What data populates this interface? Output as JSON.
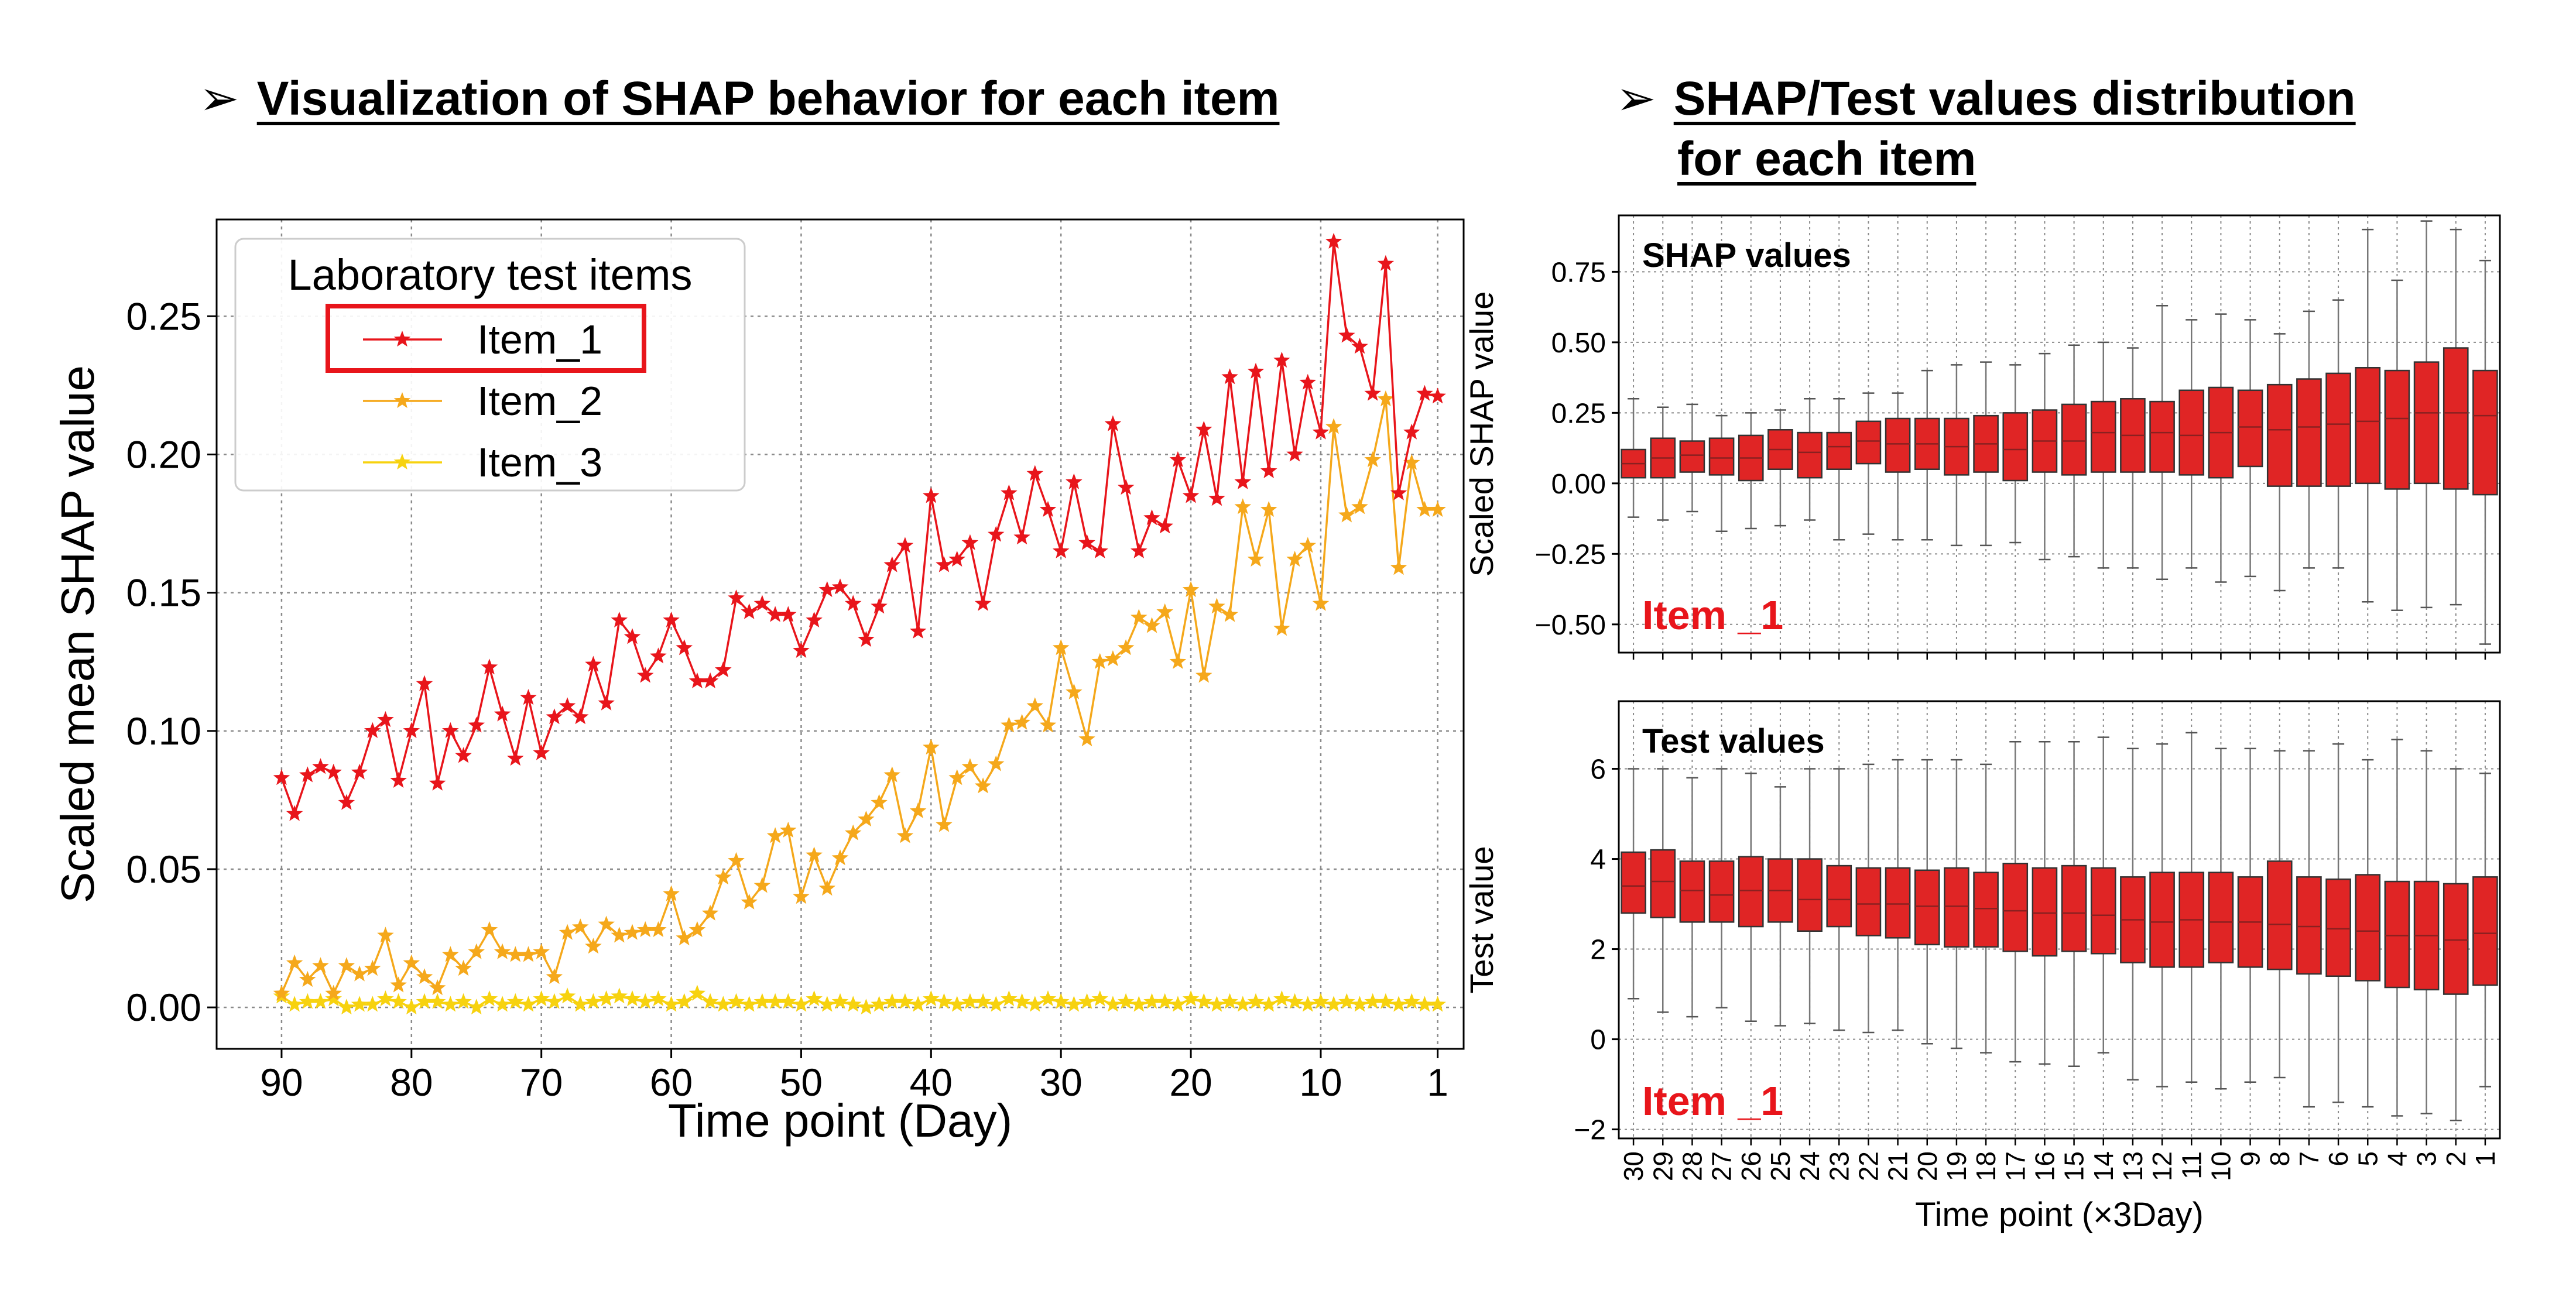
{
  "headings": {
    "left": "Visualization of SHAP behavior for each item",
    "right_line1": "SHAP/Test values distribution",
    "right_line2": "for each item"
  },
  "colors": {
    "item1": "#e8151b",
    "item2": "#f5a81b",
    "item3": "#f7d20f",
    "box_fill": "#e02525",
    "highlight": "#e8151b",
    "grid": "#8a8a8a"
  },
  "chart_data": [
    {
      "type": "line",
      "xlabel": "Time point (Day)",
      "ylabel": "Scaled mean SHAP value",
      "xlim": [
        95,
        -1
      ],
      "ylim": [
        -0.015,
        0.285
      ],
      "xticks": [
        90,
        80,
        70,
        60,
        50,
        40,
        30,
        20,
        10,
        1
      ],
      "yticks": [
        0.0,
        0.05,
        0.1,
        0.15,
        0.2,
        0.25
      ],
      "ytick_labels": [
        "0.00",
        "0.05",
        "0.10",
        "0.15",
        "0.20",
        "0.25"
      ],
      "grid": true,
      "legend": {
        "title": "Laboratory test items",
        "placement": "top-left",
        "highlighted": "Item_1"
      },
      "x": [
        90,
        89,
        88,
        87,
        86,
        85,
        84,
        83,
        82,
        81,
        80,
        79,
        78,
        77,
        76,
        75,
        74,
        73,
        72,
        71,
        70,
        69,
        68,
        67,
        66,
        65,
        64,
        63,
        62,
        61,
        60,
        59,
        58,
        57,
        56,
        55,
        54,
        53,
        52,
        51,
        50,
        49,
        48,
        47,
        46,
        45,
        44,
        43,
        42,
        41,
        40,
        39,
        38,
        37,
        36,
        35,
        34,
        33,
        32,
        31,
        30,
        29,
        28,
        27,
        26,
        25,
        24,
        23,
        22,
        21,
        20,
        19,
        18,
        17,
        16,
        15,
        14,
        13,
        12,
        11,
        10,
        9,
        8,
        7,
        6,
        5,
        4,
        3,
        2,
        1
      ],
      "series": [
        {
          "name": "Item_1",
          "values": [
            0.083,
            0.07,
            0.084,
            0.087,
            0.085,
            0.074,
            0.085,
            0.1,
            0.104,
            0.082,
            0.1,
            0.117,
            0.081,
            0.1,
            0.091,
            0.102,
            0.123,
            0.106,
            0.09,
            0.112,
            0.092,
            0.105,
            0.109,
            0.105,
            0.124,
            0.11,
            0.14,
            0.134,
            0.12,
            0.127,
            0.14,
            0.13,
            0.118,
            0.118,
            0.122,
            0.148,
            0.143,
            0.146,
            0.142,
            0.142,
            0.129,
            0.14,
            0.151,
            0.152,
            0.146,
            0.133,
            0.145,
            0.16,
            0.167,
            0.136,
            0.185,
            0.16,
            0.162,
            0.168,
            0.146,
            0.171,
            0.186,
            0.17,
            0.193,
            0.18,
            0.165,
            0.19,
            0.168,
            0.165,
            0.211,
            0.188,
            0.165,
            0.177,
            0.174,
            0.198,
            0.185,
            0.209,
            0.184,
            0.228,
            0.19,
            0.23,
            0.194,
            0.234,
            0.2,
            0.226,
            0.208,
            0.277,
            0.243,
            0.239,
            0.222,
            0.269,
            0.186,
            0.208,
            0.222,
            0.221
          ]
        },
        {
          "name": "Item_2",
          "values": [
            0.005,
            0.016,
            0.01,
            0.015,
            0.005,
            0.015,
            0.012,
            0.014,
            0.026,
            0.008,
            0.016,
            0.011,
            0.007,
            0.019,
            0.014,
            0.02,
            0.028,
            0.02,
            0.019,
            0.019,
            0.02,
            0.011,
            0.027,
            0.029,
            0.022,
            0.03,
            0.026,
            0.027,
            0.028,
            0.028,
            0.041,
            0.025,
            0.028,
            0.034,
            0.047,
            0.053,
            0.038,
            0.044,
            0.062,
            0.064,
            0.04,
            0.055,
            0.043,
            0.054,
            0.063,
            0.068,
            0.074,
            0.084,
            0.062,
            0.071,
            0.094,
            0.066,
            0.083,
            0.087,
            0.08,
            0.088,
            0.102,
            0.103,
            0.109,
            0.102,
            0.13,
            0.114,
            0.097,
            0.125,
            0.126,
            0.13,
            0.141,
            0.138,
            0.143,
            0.125,
            0.151,
            0.12,
            0.145,
            0.142,
            0.181,
            0.162,
            0.18,
            0.137,
            0.162,
            0.167,
            0.146,
            0.21,
            0.178,
            0.181,
            0.198,
            0.22,
            0.159,
            0.197,
            0.18,
            0.18
          ]
        },
        {
          "name": "Item_3",
          "values": [
            0.004,
            0.001,
            0.002,
            0.002,
            0.003,
            0.0,
            0.001,
            0.001,
            0.003,
            0.002,
            0.0,
            0.002,
            0.002,
            0.001,
            0.002,
            0.0,
            0.003,
            0.001,
            0.002,
            0.001,
            0.003,
            0.002,
            0.004,
            0.001,
            0.002,
            0.003,
            0.004,
            0.003,
            0.002,
            0.003,
            0.001,
            0.002,
            0.005,
            0.002,
            0.001,
            0.002,
            0.001,
            0.002,
            0.002,
            0.002,
            0.001,
            0.003,
            0.001,
            0.002,
            0.001,
            0.0,
            0.001,
            0.002,
            0.002,
            0.001,
            0.003,
            0.002,
            0.001,
            0.002,
            0.002,
            0.001,
            0.003,
            0.002,
            0.001,
            0.003,
            0.002,
            0.001,
            0.002,
            0.003,
            0.001,
            0.002,
            0.001,
            0.002,
            0.002,
            0.001,
            0.003,
            0.002,
            0.001,
            0.002,
            0.001,
            0.002,
            0.001,
            0.003,
            0.002,
            0.001,
            0.002,
            0.001,
            0.002,
            0.001,
            0.002,
            0.002,
            0.001,
            0.002,
            0.001,
            0.001
          ]
        }
      ]
    },
    {
      "type": "box",
      "annotation_title": "SHAP values",
      "annotation_item": "Item _1",
      "ylabel": "Scaled SHAP value",
      "ylim": [
        -0.6,
        0.95
      ],
      "yticks": [
        -0.5,
        -0.25,
        0.0,
        0.25,
        0.5,
        0.75
      ],
      "ytick_labels": [
        "−0.50",
        "−0.25",
        "0.00",
        "0.25",
        "0.50",
        "0.75"
      ],
      "grid": true,
      "categories": [
        "30",
        "29",
        "28",
        "27",
        "26",
        "25",
        "24",
        "23",
        "22",
        "21",
        "20",
        "19",
        "18",
        "17",
        "16",
        "15",
        "14",
        "13",
        "12",
        "11",
        "10",
        "9",
        "8",
        "7",
        "6",
        "5",
        "4",
        "3",
        "2",
        "1"
      ],
      "q1": [
        0.02,
        0.02,
        0.04,
        0.03,
        0.01,
        0.05,
        0.02,
        0.05,
        0.07,
        0.04,
        0.05,
        0.03,
        0.04,
        0.01,
        0.04,
        0.03,
        0.04,
        0.04,
        0.04,
        0.03,
        0.02,
        0.06,
        -0.01,
        -0.01,
        -0.01,
        0.0,
        -0.02,
        0.0,
        -0.02,
        -0.04
      ],
      "median": [
        0.07,
        0.09,
        0.1,
        0.09,
        0.09,
        0.12,
        0.11,
        0.13,
        0.15,
        0.14,
        0.14,
        0.13,
        0.14,
        0.12,
        0.15,
        0.15,
        0.18,
        0.17,
        0.18,
        0.17,
        0.18,
        0.2,
        0.19,
        0.2,
        0.21,
        0.22,
        0.23,
        0.25,
        0.25,
        0.24
      ],
      "q3": [
        0.12,
        0.16,
        0.15,
        0.16,
        0.17,
        0.19,
        0.18,
        0.18,
        0.22,
        0.23,
        0.23,
        0.23,
        0.24,
        0.25,
        0.26,
        0.28,
        0.29,
        0.3,
        0.29,
        0.33,
        0.34,
        0.33,
        0.35,
        0.37,
        0.39,
        0.41,
        0.4,
        0.43,
        0.48,
        0.4
      ],
      "whisker_low": [
        -0.12,
        -0.13,
        -0.1,
        -0.17,
        -0.16,
        -0.15,
        -0.13,
        -0.2,
        -0.18,
        -0.2,
        -0.2,
        -0.22,
        -0.22,
        -0.21,
        -0.27,
        -0.26,
        -0.3,
        -0.3,
        -0.34,
        -0.3,
        -0.35,
        -0.33,
        -0.38,
        -0.3,
        -0.3,
        -0.42,
        -0.45,
        -0.44,
        -0.43,
        -0.57
      ],
      "whisker_high": [
        0.3,
        0.27,
        0.28,
        0.24,
        0.25,
        0.26,
        0.3,
        0.3,
        0.32,
        0.32,
        0.4,
        0.42,
        0.43,
        0.42,
        0.46,
        0.49,
        0.5,
        0.48,
        0.63,
        0.58,
        0.6,
        0.58,
        0.53,
        0.61,
        0.65,
        0.9,
        0.72,
        0.93,
        0.9,
        0.79
      ]
    },
    {
      "type": "box",
      "annotation_title": "Test values",
      "annotation_item": "Item _1",
      "xlabel": "Time point (×3Day)",
      "ylabel": "Test value",
      "ylim": [
        -2.2,
        7.5
      ],
      "yticks": [
        -2,
        0,
        2,
        4,
        6
      ],
      "ytick_labels": [
        "−2",
        "0",
        "2",
        "4",
        "6"
      ],
      "grid": true,
      "categories": [
        "30",
        "29",
        "28",
        "27",
        "26",
        "25",
        "24",
        "23",
        "22",
        "21",
        "20",
        "19",
        "18",
        "17",
        "16",
        "15",
        "14",
        "13",
        "12",
        "11",
        "10",
        "9",
        "8",
        "7",
        "6",
        "5",
        "4",
        "3",
        "2",
        "1"
      ],
      "q1": [
        2.8,
        2.7,
        2.6,
        2.6,
        2.5,
        2.6,
        2.4,
        2.5,
        2.3,
        2.25,
        2.1,
        2.05,
        2.05,
        1.95,
        1.85,
        1.95,
        1.9,
        1.7,
        1.6,
        1.6,
        1.7,
        1.6,
        1.55,
        1.45,
        1.4,
        1.3,
        1.15,
        1.1,
        1.0,
        1.2
      ],
      "median": [
        3.4,
        3.5,
        3.3,
        3.2,
        3.3,
        3.3,
        3.1,
        3.1,
        3.0,
        3.0,
        2.95,
        2.95,
        2.9,
        2.85,
        2.8,
        2.8,
        2.75,
        2.65,
        2.6,
        2.65,
        2.6,
        2.6,
        2.55,
        2.5,
        2.45,
        2.4,
        2.3,
        2.3,
        2.2,
        2.35
      ],
      "q3": [
        4.15,
        4.2,
        3.95,
        3.95,
        4.05,
        4.0,
        4.0,
        3.85,
        3.8,
        3.8,
        3.75,
        3.8,
        3.7,
        3.9,
        3.8,
        3.85,
        3.8,
        3.6,
        3.7,
        3.7,
        3.7,
        3.6,
        3.95,
        3.6,
        3.55,
        3.65,
        3.5,
        3.5,
        3.45,
        3.6
      ],
      "whisker_low": [
        0.9,
        0.6,
        0.5,
        0.7,
        0.4,
        0.3,
        0.35,
        0.2,
        0.15,
        0.2,
        -0.1,
        -0.2,
        -0.3,
        -0.5,
        -0.55,
        -0.6,
        -0.3,
        -0.9,
        -1.05,
        -0.95,
        -1.1,
        -0.95,
        -0.85,
        -1.5,
        -1.4,
        -1.5,
        -1.7,
        -1.65,
        -1.8,
        -1.05
      ],
      "whisker_high": [
        6.0,
        6.0,
        5.8,
        6.0,
        5.9,
        5.6,
        6.0,
        6.0,
        6.1,
        6.2,
        6.2,
        6.2,
        6.1,
        6.6,
        6.6,
        6.6,
        6.7,
        6.45,
        6.55,
        6.8,
        6.45,
        6.45,
        6.4,
        6.4,
        6.55,
        6.2,
        6.65,
        6.4,
        6.0,
        5.9
      ]
    }
  ]
}
